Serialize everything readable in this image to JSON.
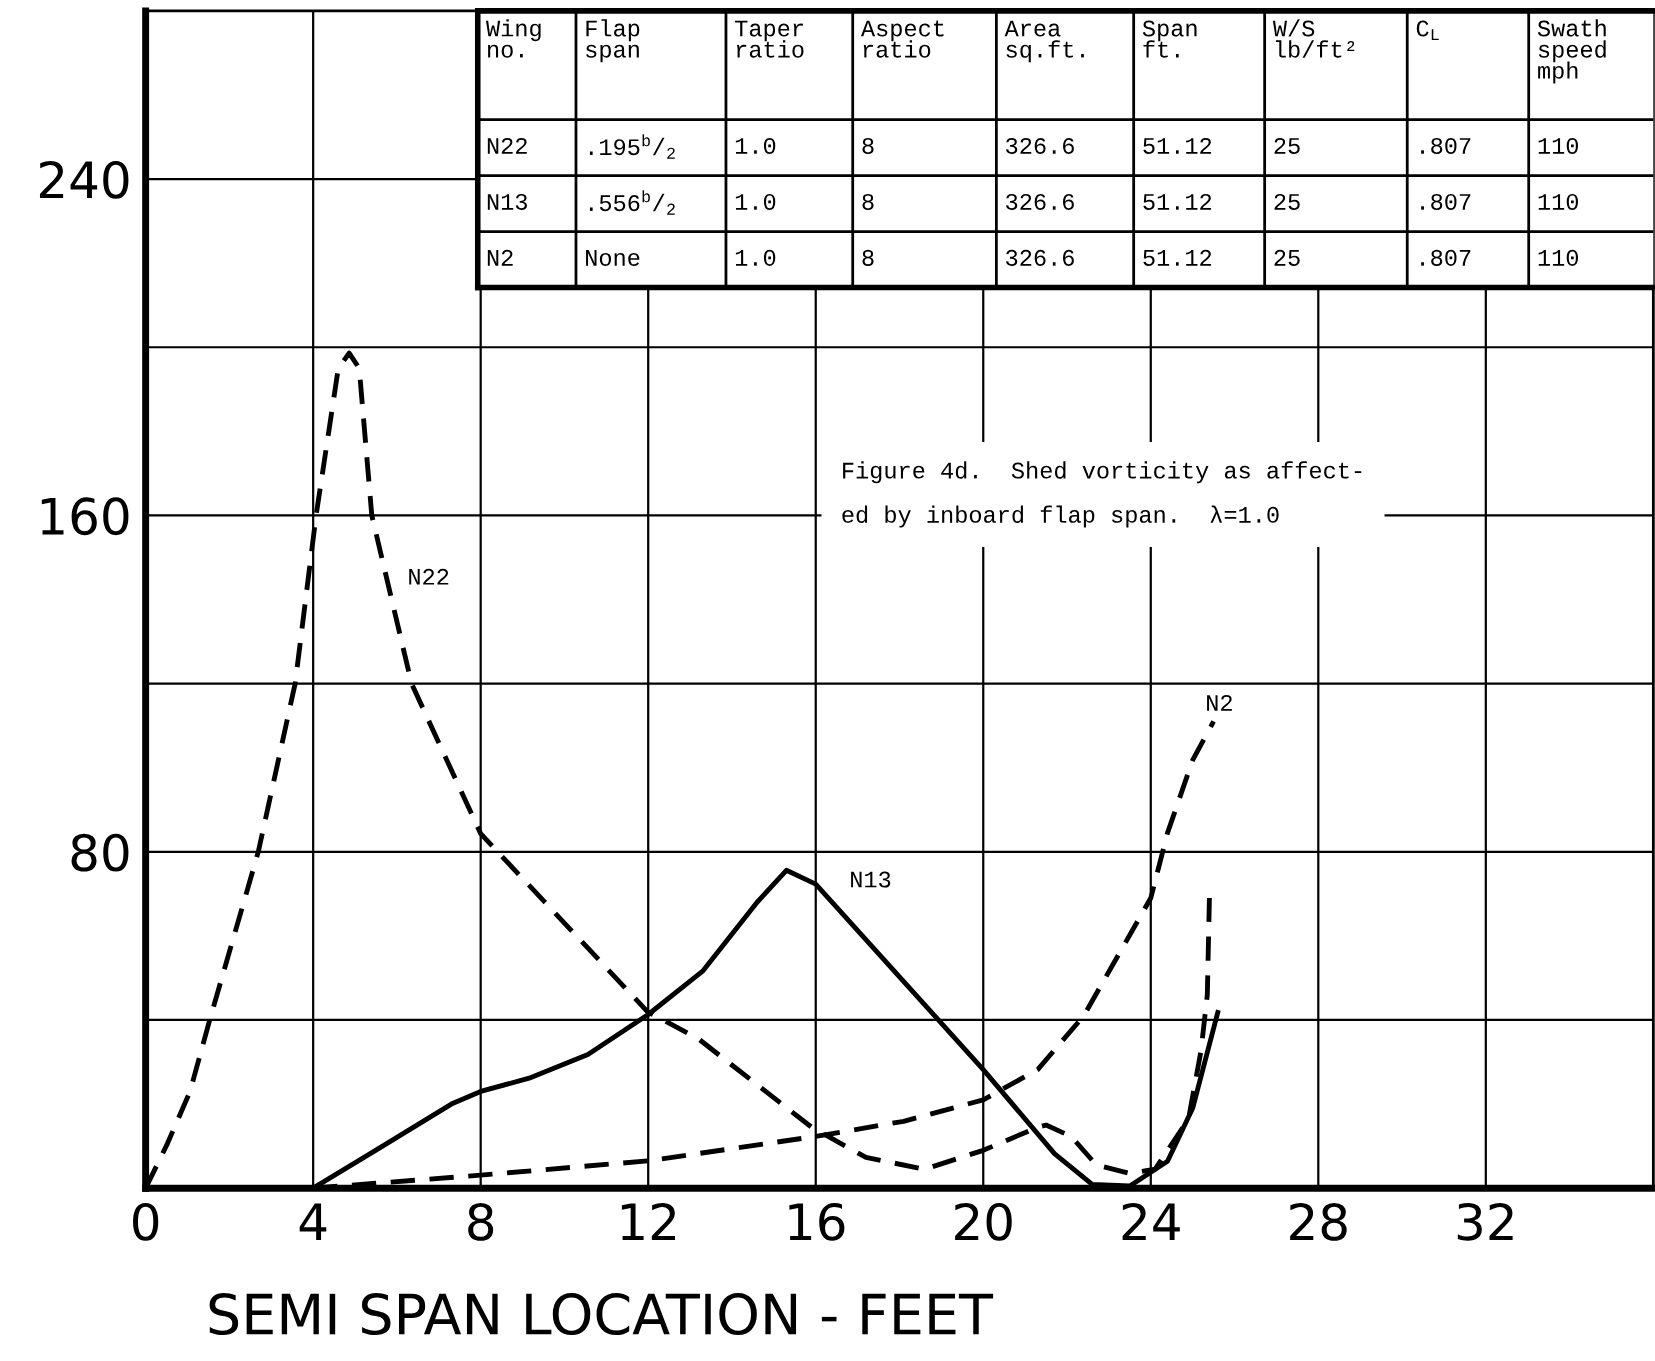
{
  "chart_data": {
    "type": "line",
    "xlabel": "SEMI SPAN LOCATION - FEET",
    "xlim": [
      0,
      36
    ],
    "xticks": [
      0,
      4,
      8,
      12,
      16,
      20,
      24,
      28,
      32
    ],
    "ylim": [
      0,
      280
    ],
    "yticks": [
      {
        "value": 40,
        "label": null
      },
      80,
      {
        "value": 120,
        "label": null
      },
      160,
      {
        "value": 200,
        "label": null
      },
      240
    ],
    "grid": true,
    "series": [
      {
        "color": "#000000",
        "line_style": "dashed",
        "x": [
          0,
          0.52,
          1.06,
          1.53,
          2.69,
          3.57,
          4.07,
          4.6,
          4.86,
          5.1,
          5.4,
          6.35,
          8.0,
          11.98,
          13.2,
          15.9,
          17.2,
          18.6,
          20,
          21.3,
          21.5,
          22.1,
          22.7,
          23.5,
          24.1,
          24.9,
          25.2,
          25.35,
          25.4
        ],
        "values": [
          0,
          10.6,
          23,
          40,
          80,
          120,
          160,
          195,
          198.6,
          195,
          160,
          120,
          84.3,
          42,
          35.5,
          14.5,
          7.3,
          4.5,
          9,
          14.5,
          15,
          12.3,
          5.5,
          3.5,
          4.5,
          16.4,
          32.7,
          46,
          69
        ]
      },
      {
        "color": "#000000",
        "line_style": "solid",
        "x": [
          4,
          5.54,
          7.3,
          8,
          9.2,
          10.56,
          12,
          13.3,
          14.6,
          15.3,
          16,
          20,
          21.7,
          22.6,
          23.5,
          24.4,
          25,
          25.6
        ],
        "values": [
          0,
          9.3,
          20,
          23,
          26.3,
          31.8,
          41.3,
          51.6,
          68,
          75.6,
          72.3,
          28.2,
          8.2,
          0.9,
          0.5,
          6.4,
          19,
          41.8
        ]
      },
      {
        "color": "#000000",
        "line_style": "dashed",
        "x": [
          4,
          8,
          12,
          16,
          18.1,
          20,
          21.3,
          22.4,
          24,
          24.4,
          25,
          25.5
        ],
        "values": [
          0,
          3.1,
          6.5,
          12.3,
          15.9,
          21,
          28.2,
          41,
          69,
          84.5,
          101.8,
          111
        ]
      }
    ],
    "annotations": [
      "N22",
      "N13",
      "N2",
      "Figure 4d.  Shed vorticity as affect-\ned by inboard flap span.  λ=1.0",
      "Wing\nno.",
      "Flap\nspan",
      "Taper\nratio",
      "Aspect\nratio",
      "Area\nsq.ft.",
      "Span\nft.",
      "W/S\nlb/ft²",
      "C$_{L}$",
      "Swath\nspeed\nmph",
      "N22",
      ".195$^{b}$/$_{2}$",
      "1.0",
      "8",
      "326.6",
      "51.12",
      "25",
      ".807",
      "110",
      "N13",
      ".556$^{b}$/$_{2}$",
      "1.0",
      "8",
      "326.6",
      "51.12",
      "25",
      ".807",
      "110",
      "N2",
      "None",
      "1.0",
      "8",
      "326.6",
      "51.12",
      "25",
      ".807",
      "110"
    ]
  }
}
